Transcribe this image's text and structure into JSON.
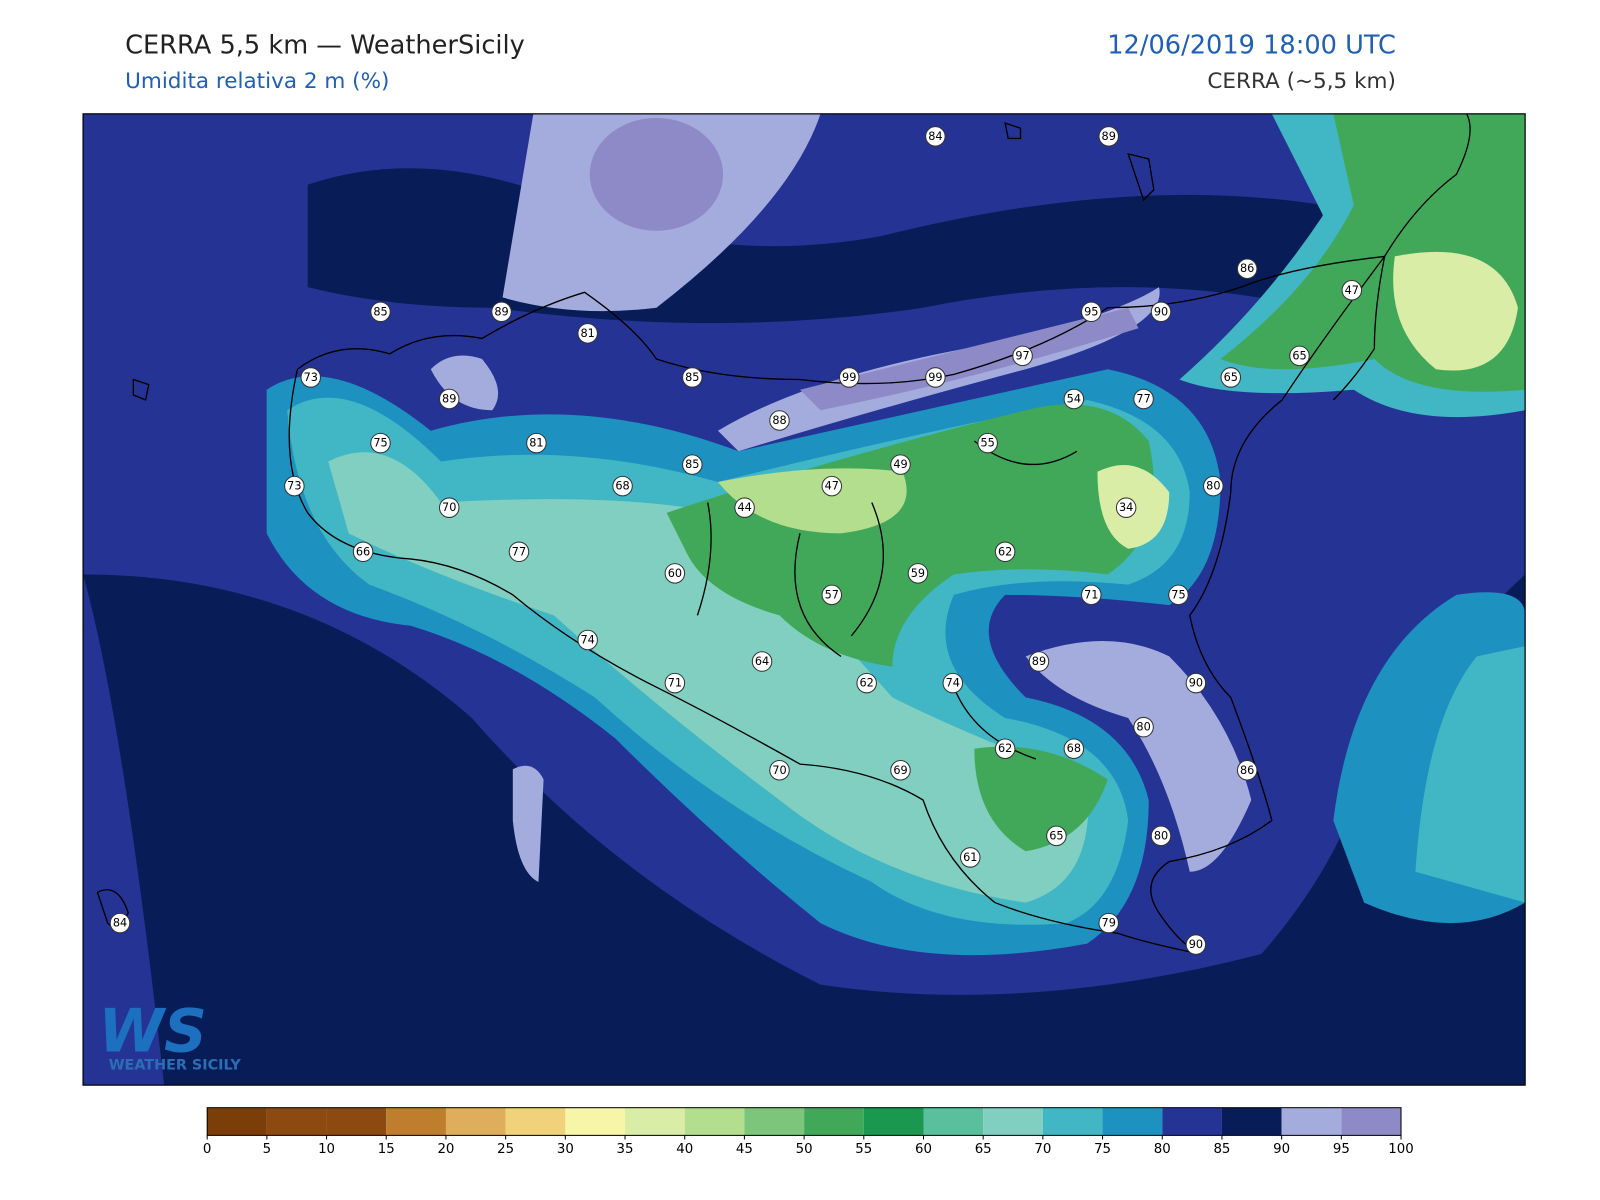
{
  "header": {
    "title": "CERRA 5,5 km — WeatherSicily",
    "subtitle": "Umidita relativa 2 m (%)",
    "datetime": "12/06/2019 18:00 UTC",
    "source": "CERRA (~5,5 km)"
  },
  "stations": [
    84,
    89,
    86,
    47,
    85,
    89,
    81,
    95,
    90,
    97,
    65,
    65,
    73,
    89,
    85,
    99,
    99,
    54,
    77,
    88,
    75,
    81,
    55,
    85,
    49,
    73,
    68,
    47,
    80,
    70,
    44,
    34,
    66,
    77,
    62,
    60,
    59,
    57,
    71,
    75,
    74,
    89,
    64,
    71,
    62,
    74,
    90,
    80,
    62,
    68,
    70,
    69,
    86,
    65,
    80,
    61,
    84,
    79,
    90
  ],
  "colorbar": {
    "ticks": [
      0,
      5,
      10,
      15,
      20,
      25,
      30,
      35,
      40,
      45,
      50,
      55,
      60,
      65,
      70,
      75,
      80,
      85,
      90,
      95,
      100
    ],
    "colors": [
      "#7b3e08",
      "#8c4a10",
      "#8c4a10",
      "#bf7e2d",
      "#dfae5c",
      "#f0d27b",
      "#f7f5a8",
      "#d9eda6",
      "#b2de8e",
      "#7cc57a",
      "#41a85a",
      "#1b9850",
      "#5abf9c",
      "#80cfc0",
      "#41b6c4",
      "#1d91c0",
      "#253494",
      "#081d58",
      "#a3acdc",
      "#8d8ac7"
    ]
  },
  "logo": {
    "mark": "WS",
    "text": "WEATHER SICILY"
  }
}
